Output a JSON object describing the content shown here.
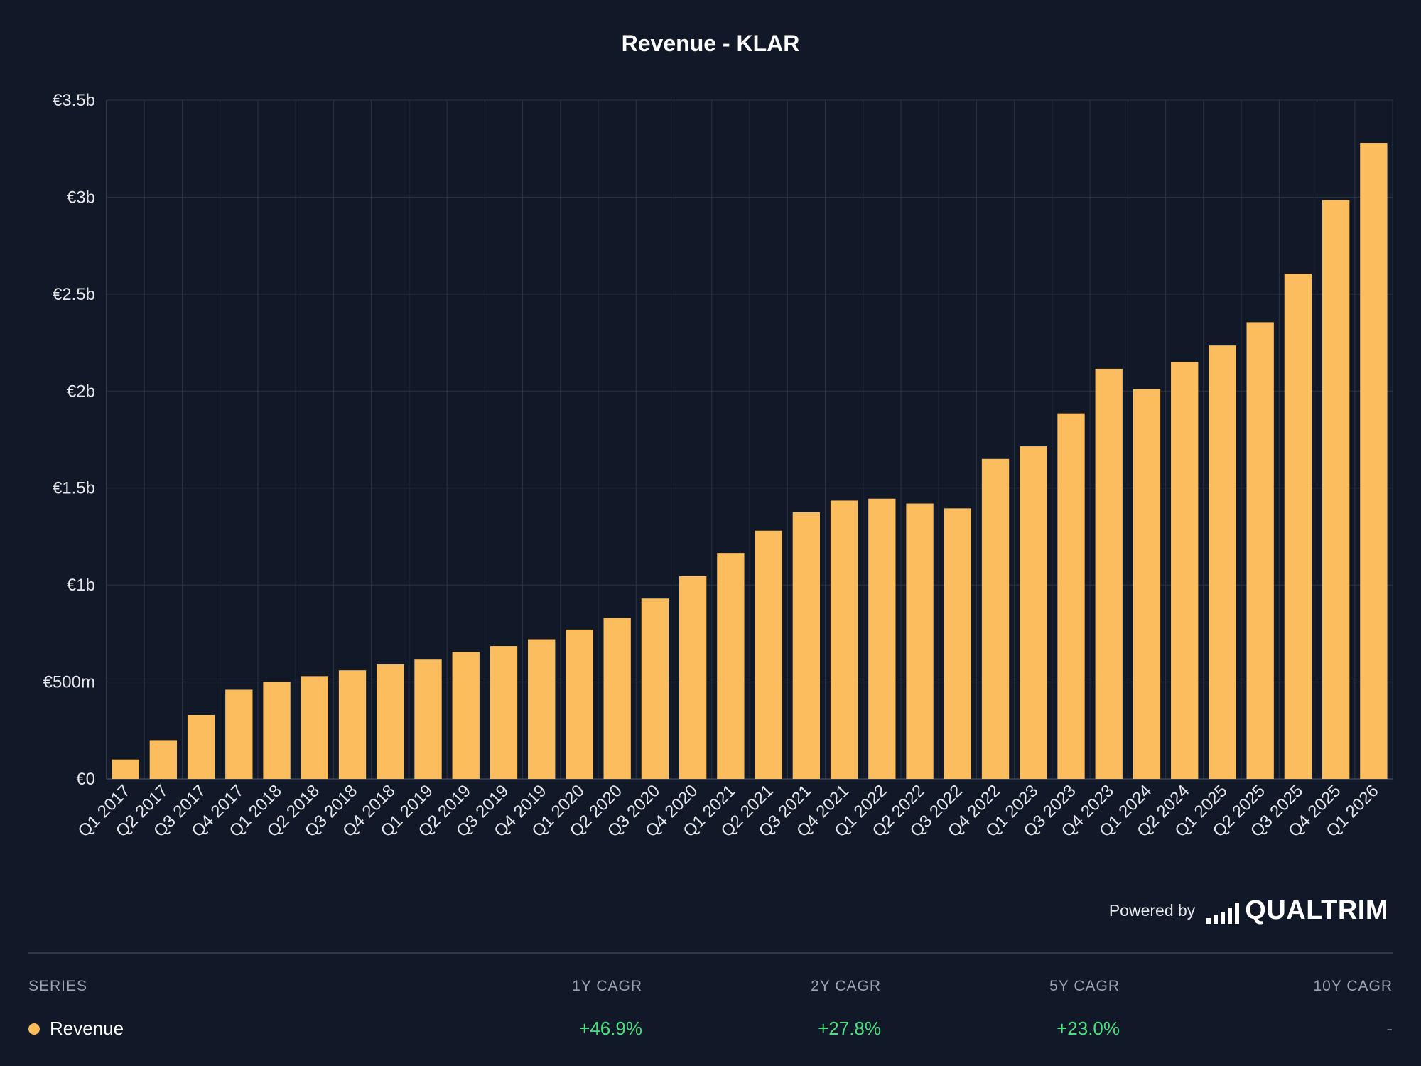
{
  "chart_data": {
    "type": "bar",
    "title": "Revenue - KLAR",
    "categories": [
      "Q1 2017",
      "Q2 2017",
      "Q3 2017",
      "Q4 2017",
      "Q1 2018",
      "Q2 2018",
      "Q3 2018",
      "Q4 2018",
      "Q1 2019",
      "Q2 2019",
      "Q3 2019",
      "Q4 2019",
      "Q1 2020",
      "Q2 2020",
      "Q3 2020",
      "Q4 2020",
      "Q1 2021",
      "Q2 2021",
      "Q3 2021",
      "Q4 2021",
      "Q1 2022",
      "Q2 2022",
      "Q3 2022",
      "Q4 2022",
      "Q1 2023",
      "Q3 2023",
      "Q4 2023",
      "Q1 2024",
      "Q2 2024",
      "Q1 2025",
      "Q2 2025",
      "Q3 2025",
      "Q4 2025",
      "Q1 2026"
    ],
    "series": [
      {
        "name": "Revenue",
        "color": "#fbbd5e",
        "values": [
          0.1,
          0.2,
          0.33,
          0.46,
          0.5,
          0.53,
          0.56,
          0.59,
          0.615,
          0.655,
          0.685,
          0.72,
          0.77,
          0.83,
          0.93,
          1.045,
          1.165,
          1.28,
          1.375,
          1.435,
          1.445,
          1.42,
          1.395,
          1.65,
          1.715,
          1.885,
          2.115,
          2.01,
          2.15,
          2.235,
          2.355,
          2.605,
          2.985,
          3.28
        ]
      }
    ],
    "value_unit": "EUR billions",
    "ylim": [
      0,
      3.5
    ],
    "yticks": [
      0,
      0.5,
      1,
      1.5,
      2,
      2.5,
      3,
      3.5
    ],
    "ytick_labels": [
      "€0",
      "€500m",
      "€1b",
      "€1.5b",
      "€2b",
      "€2.5b",
      "€3b",
      "€3.5b"
    ],
    "grid": true,
    "xlabel": "",
    "ylabel": ""
  },
  "footer": {
    "powered_by": "Powered by",
    "brand": "QUALTRIM"
  },
  "table": {
    "headers": {
      "series": "SERIES",
      "cagr_1y": "1Y CAGR",
      "cagr_2y": "2Y CAGR",
      "cagr_5y": "5Y CAGR",
      "cagr_10y": "10Y CAGR"
    },
    "rows": [
      {
        "name": "Revenue",
        "color": "#fbbd5e",
        "cagr_1y": "+46.9%",
        "cagr_2y": "+27.8%",
        "cagr_5y": "+23.0%",
        "cagr_10y": "-"
      }
    ]
  }
}
